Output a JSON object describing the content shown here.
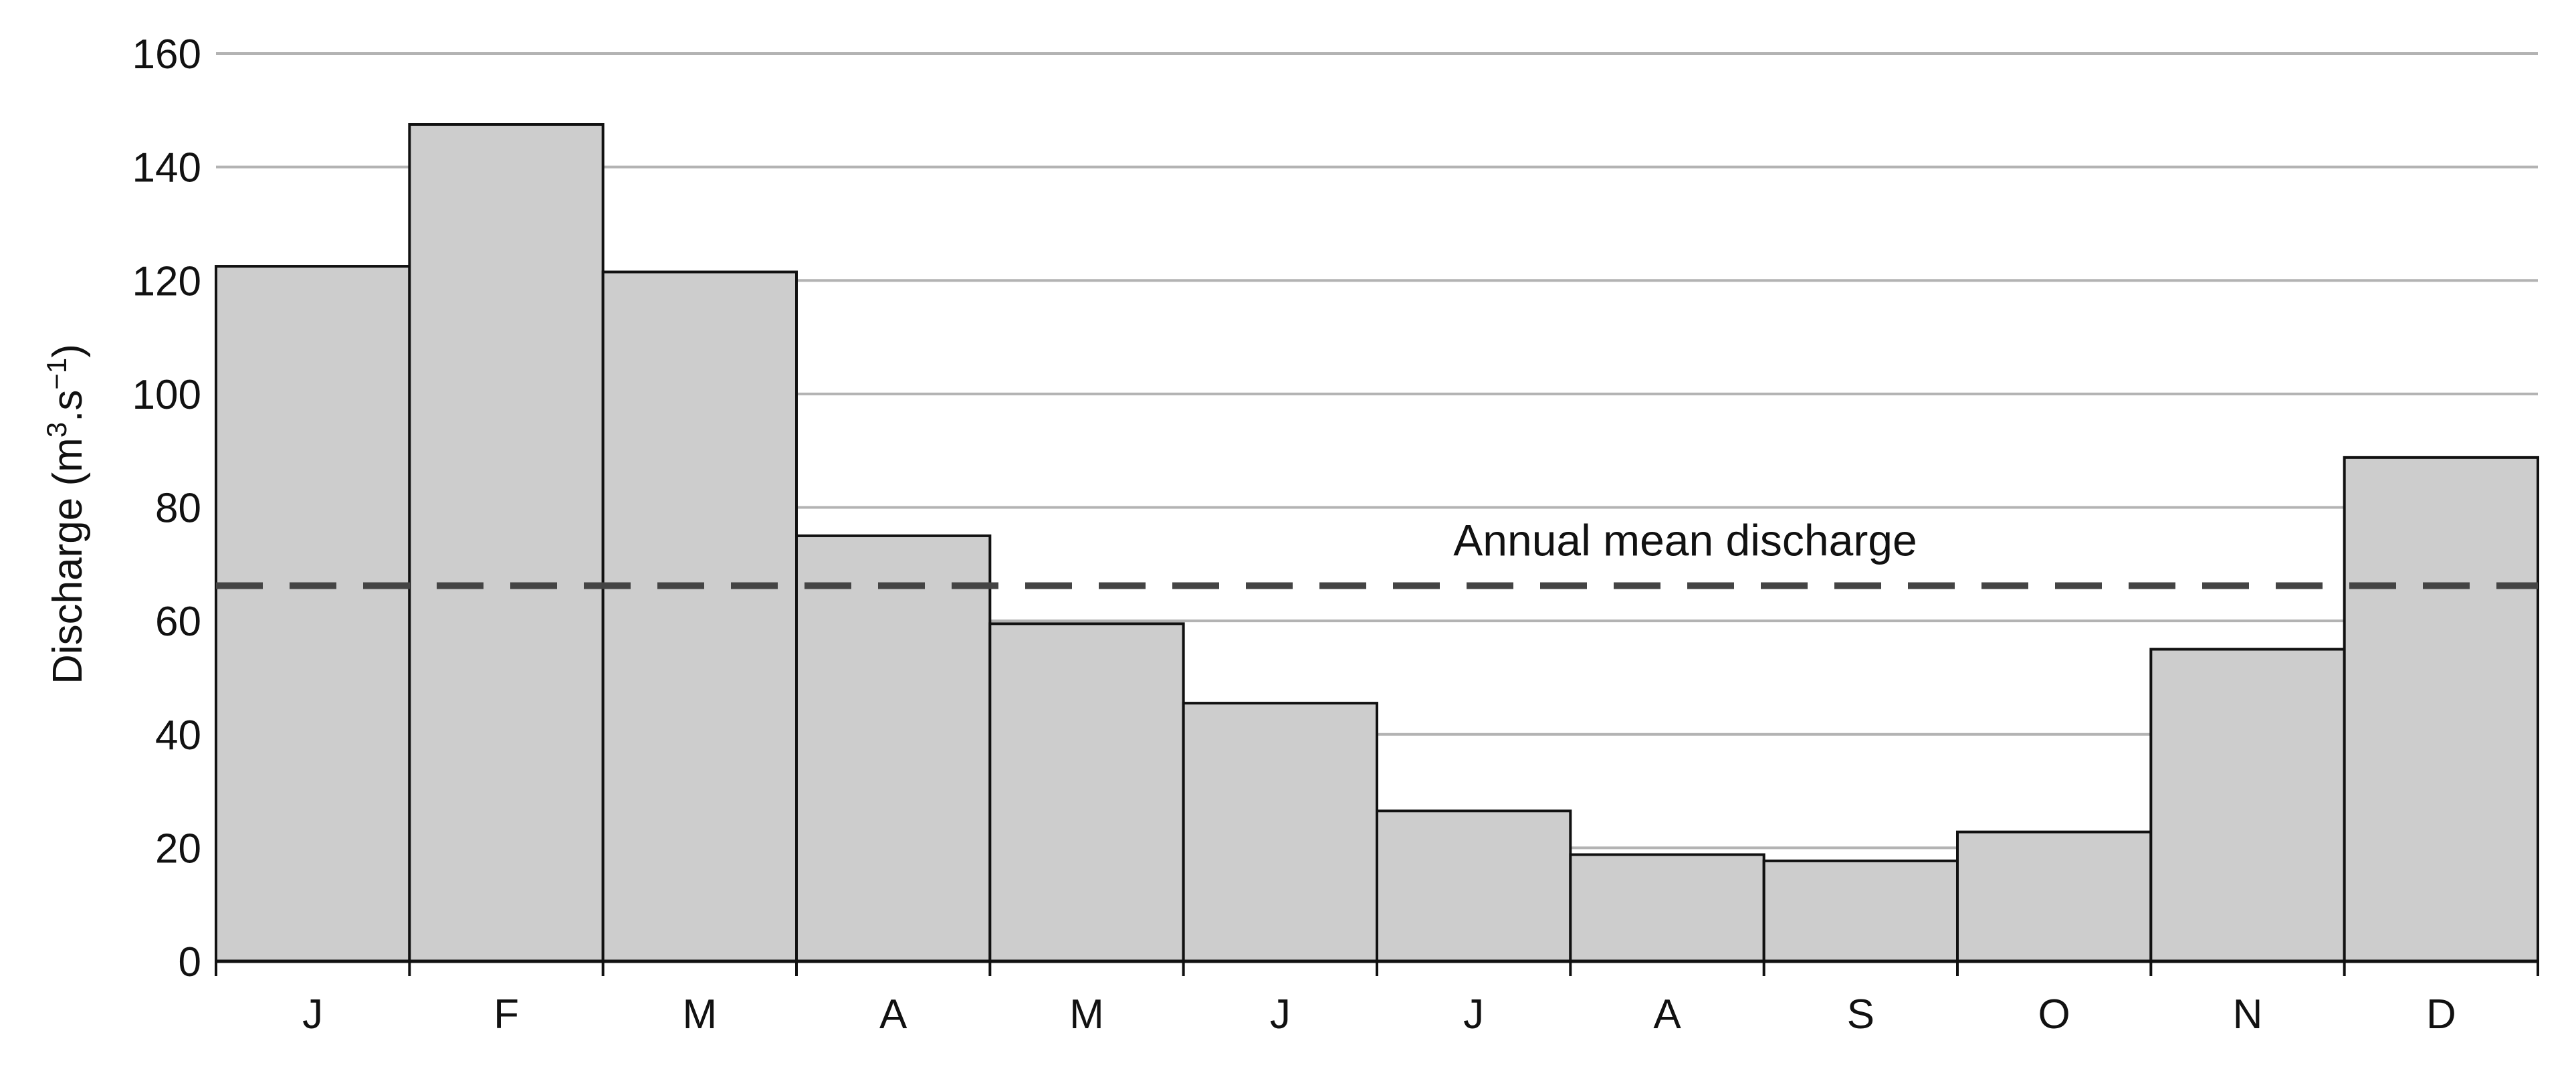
{
  "chart_data": {
    "type": "bar",
    "title": "",
    "ylabel": "Discharge (m3.s−1)",
    "ylabel_parts": {
      "pre": "Discharge (m",
      "sup1": "3",
      "mid": ".s",
      "sup2": "−1",
      "post": ")"
    },
    "xlabel": "",
    "categories": [
      "J",
      "F",
      "M",
      "A",
      "M",
      "J",
      "J",
      "A",
      "S",
      "O",
      "N",
      "D"
    ],
    "values": [
      122.5,
      147.5,
      121.5,
      75,
      59.5,
      45.5,
      26.5,
      18.8,
      17.7,
      22.8,
      55,
      88.8
    ],
    "ylim": [
      0,
      160
    ],
    "yticks": [
      "0",
      "20",
      "40",
      "60",
      "80",
      "100",
      "120",
      "140",
      "160"
    ],
    "grid": true,
    "mean_line": {
      "label": "Annual mean discharge",
      "value": 66.2
    },
    "colors": {
      "bar_fill": "#cdcdcd",
      "bar_stroke": "#111111",
      "grid": "#b3b3b3",
      "mean_line": "#444444"
    }
  }
}
